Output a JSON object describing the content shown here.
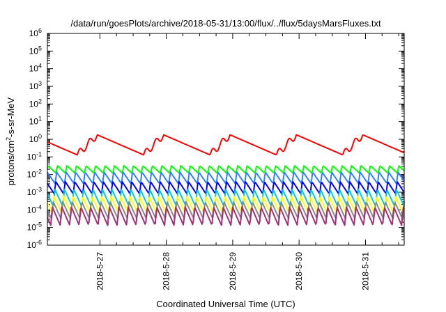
{
  "chart_data": {
    "type": "line",
    "title": "/data/run/goesPlots/archive/2018-05-31/13:00/flux/../flux/5daysMarsFluxes.txt",
    "xlabel": "Coordinated Universal Time (UTC)",
    "ylabel": {
      "prefix": "protons/cm",
      "sup": "2",
      "suffix": "-s-sr-MeV"
    },
    "yscale": "log",
    "ylim_exponent": [
      -6,
      6
    ],
    "y_tick_exponents": [
      -6,
      -5,
      -4,
      -3,
      -2,
      -1,
      0,
      1,
      2,
      3,
      4,
      5,
      6
    ],
    "xlim_days": [
      "2018-05-26 05:00",
      "2018-05-31 14:00"
    ],
    "x_tick_labels": [
      "2018-5-27",
      "2018-5-28",
      "2018-5-29",
      "2018-5-30",
      "2018-5-31"
    ],
    "x_tick_dates": [
      "2018-05-27",
      "2018-05-28",
      "2018-05-29",
      "2018-05-30",
      "2018-05-31"
    ],
    "grid": false,
    "series": [
      {
        "color": "#ff0000",
        "base": 0.3,
        "peak": 1.8,
        "trough": 0.13,
        "mode": "cycle"
      },
      {
        "color": "#00ff00",
        "base": 0.02,
        "peak": 0.032,
        "trough": 0.012,
        "mode": "saw"
      },
      {
        "color": "#2f80ff",
        "base": 0.008,
        "peak": 0.014,
        "trough": 0.003,
        "mode": "saw"
      },
      {
        "color": "#0000ff",
        "base": 0.002,
        "peak": 0.004,
        "trough": 0.0008,
        "mode": "saw"
      },
      {
        "color": "#00cccc",
        "base": 0.0008,
        "peak": 0.0015,
        "trough": 0.00015,
        "mode": "saw"
      },
      {
        "color": "#ffff00",
        "base": 0.0003,
        "peak": 0.0006,
        "trough": 6e-05,
        "mode": "saw"
      },
      {
        "color": "#888888",
        "base": 0.00015,
        "peak": 0.0003,
        "trough": 3e-05,
        "mode": "saw"
      },
      {
        "color": "#a0307a",
        "base": 8e-05,
        "peak": 0.00015,
        "trough": 1.3e-05,
        "mode": "saw"
      }
    ]
  }
}
